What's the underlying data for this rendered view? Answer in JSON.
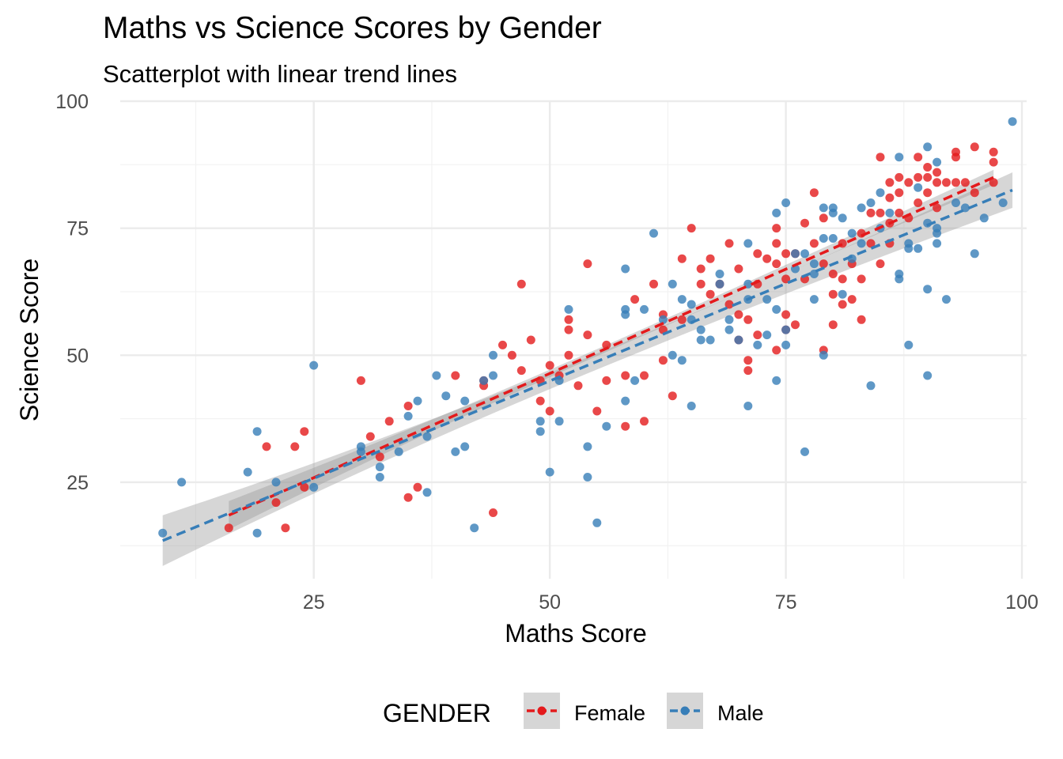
{
  "chart_data": {
    "type": "scatter",
    "title": "Maths vs Science Scores by Gender",
    "subtitle": "Scatterplot with linear trend lines",
    "xlabel": "Maths Score",
    "ylabel": "Science Score",
    "xlim": [
      4.5,
      100.5
    ],
    "ylim": [
      6,
      100
    ],
    "xticks": [
      25,
      50,
      75,
      100
    ],
    "yticks": [
      25,
      50,
      75,
      100
    ],
    "grid": true,
    "legend": {
      "title": "GENDER",
      "position": "bottom"
    },
    "series": [
      {
        "name": "Female",
        "color": "#E41A1C",
        "trend": {
          "x": [
            16,
            97
          ],
          "y": [
            18.5,
            85
          ],
          "ci_halfwidth": [
            2.8,
            1.5
          ]
        },
        "points": [
          [
            16,
            16
          ],
          [
            20,
            32
          ],
          [
            21,
            21
          ],
          [
            22,
            16
          ],
          [
            23,
            32
          ],
          [
            24,
            35
          ],
          [
            24,
            24
          ],
          [
            30,
            45
          ],
          [
            31,
            34
          ],
          [
            32,
            30
          ],
          [
            33,
            37
          ],
          [
            35,
            22
          ],
          [
            35,
            40
          ],
          [
            36,
            24
          ],
          [
            40,
            46
          ],
          [
            43,
            44
          ],
          [
            43,
            45
          ],
          [
            44,
            19
          ],
          [
            45,
            52
          ],
          [
            46,
            50
          ],
          [
            47,
            64
          ],
          [
            47,
            47
          ],
          [
            48,
            53
          ],
          [
            49,
            45
          ],
          [
            49,
            41
          ],
          [
            50,
            48
          ],
          [
            50,
            39
          ],
          [
            51,
            46
          ],
          [
            52,
            55
          ],
          [
            52,
            57
          ],
          [
            52,
            50
          ],
          [
            53,
            44
          ],
          [
            54,
            68
          ],
          [
            54,
            54
          ],
          [
            55,
            39
          ],
          [
            56,
            52
          ],
          [
            56,
            45
          ],
          [
            58,
            46
          ],
          [
            58,
            36
          ],
          [
            59,
            61
          ],
          [
            60,
            46
          ],
          [
            60,
            37
          ],
          [
            61,
            64
          ],
          [
            62,
            55
          ],
          [
            62,
            58
          ],
          [
            62,
            49
          ],
          [
            63,
            42
          ],
          [
            64,
            57
          ],
          [
            64,
            69
          ],
          [
            65,
            75
          ],
          [
            66,
            67
          ],
          [
            66,
            64
          ],
          [
            67,
            69
          ],
          [
            67,
            62
          ],
          [
            68,
            64
          ],
          [
            69,
            72
          ],
          [
            69,
            60
          ],
          [
            70,
            67
          ],
          [
            70,
            53
          ],
          [
            70,
            58
          ],
          [
            71,
            49
          ],
          [
            71,
            47
          ],
          [
            71,
            57
          ],
          [
            72,
            70
          ],
          [
            72,
            64
          ],
          [
            72,
            54
          ],
          [
            73,
            69
          ],
          [
            74,
            75
          ],
          [
            74,
            72
          ],
          [
            74,
            68
          ],
          [
            74,
            51
          ],
          [
            75,
            70
          ],
          [
            75,
            65
          ],
          [
            75,
            58
          ],
          [
            75,
            55
          ],
          [
            76,
            70
          ],
          [
            76,
            56
          ],
          [
            77,
            76
          ],
          [
            77,
            65
          ],
          [
            78,
            82
          ],
          [
            78,
            72
          ],
          [
            79,
            77
          ],
          [
            79,
            68
          ],
          [
            79,
            51
          ],
          [
            80,
            66
          ],
          [
            80,
            62
          ],
          [
            80,
            56
          ],
          [
            81,
            72
          ],
          [
            81,
            65
          ],
          [
            81,
            60
          ],
          [
            82,
            68
          ],
          [
            82,
            61
          ],
          [
            83,
            74
          ],
          [
            83,
            65
          ],
          [
            83,
            57
          ],
          [
            84,
            78
          ],
          [
            84,
            72
          ],
          [
            85,
            89
          ],
          [
            85,
            78
          ],
          [
            85,
            68
          ],
          [
            86,
            84
          ],
          [
            86,
            81
          ],
          [
            86,
            76
          ],
          [
            86,
            72
          ],
          [
            87,
            85
          ],
          [
            87,
            82
          ],
          [
            87,
            78
          ],
          [
            88,
            84
          ],
          [
            88,
            77
          ],
          [
            89,
            89
          ],
          [
            89,
            85
          ],
          [
            89,
            80
          ],
          [
            90,
            87
          ],
          [
            90,
            85
          ],
          [
            90,
            82
          ],
          [
            91,
            86
          ],
          [
            91,
            84
          ],
          [
            91,
            79
          ],
          [
            92,
            84
          ],
          [
            93,
            90
          ],
          [
            93,
            89
          ],
          [
            93,
            84
          ],
          [
            94,
            84
          ],
          [
            95,
            91
          ],
          [
            95,
            82
          ],
          [
            97,
            90
          ],
          [
            97,
            88
          ],
          [
            97,
            84
          ]
        ]
      },
      {
        "name": "Male",
        "color": "#377EB8",
        "trend": {
          "x": [
            9,
            99
          ],
          "y": [
            13.5,
            82.5
          ],
          "ci_halfwidth": [
            5,
            3.5
          ]
        },
        "points": [
          [
            9,
            15
          ],
          [
            11,
            25
          ],
          [
            18,
            27
          ],
          [
            19,
            15
          ],
          [
            19,
            35
          ],
          [
            21,
            25
          ],
          [
            25,
            48
          ],
          [
            25,
            24
          ],
          [
            30,
            32
          ],
          [
            30,
            31
          ],
          [
            32,
            28
          ],
          [
            32,
            26
          ],
          [
            34,
            31
          ],
          [
            35,
            38
          ],
          [
            36,
            41
          ],
          [
            37,
            23
          ],
          [
            37,
            34
          ],
          [
            38,
            46
          ],
          [
            39,
            42
          ],
          [
            40,
            31
          ],
          [
            41,
            41
          ],
          [
            41,
            32
          ],
          [
            42,
            16
          ],
          [
            43,
            45
          ],
          [
            44,
            50
          ],
          [
            44,
            46
          ],
          [
            49,
            35
          ],
          [
            49,
            37
          ],
          [
            50,
            27
          ],
          [
            51,
            45
          ],
          [
            51,
            37
          ],
          [
            52,
            59
          ],
          [
            54,
            32
          ],
          [
            54,
            26
          ],
          [
            55,
            17
          ],
          [
            56,
            36
          ],
          [
            58,
            59
          ],
          [
            58,
            58
          ],
          [
            58,
            67
          ],
          [
            58,
            41
          ],
          [
            59,
            45
          ],
          [
            60,
            59
          ],
          [
            61,
            74
          ],
          [
            62,
            57
          ],
          [
            63,
            64
          ],
          [
            63,
            50
          ],
          [
            64,
            61
          ],
          [
            64,
            49
          ],
          [
            65,
            60
          ],
          [
            65,
            57
          ],
          [
            65,
            40
          ],
          [
            66,
            55
          ],
          [
            66,
            53
          ],
          [
            67,
            53
          ],
          [
            68,
            64
          ],
          [
            68,
            66
          ],
          [
            69,
            55
          ],
          [
            69,
            57
          ],
          [
            70,
            53
          ],
          [
            71,
            72
          ],
          [
            71,
            64
          ],
          [
            71,
            61
          ],
          [
            71,
            40
          ],
          [
            72,
            52
          ],
          [
            73,
            61
          ],
          [
            73,
            54
          ],
          [
            74,
            78
          ],
          [
            74,
            59
          ],
          [
            74,
            45
          ],
          [
            75,
            80
          ],
          [
            75,
            55
          ],
          [
            75,
            52
          ],
          [
            76,
            70
          ],
          [
            76,
            67
          ],
          [
            77,
            70
          ],
          [
            77,
            31
          ],
          [
            78,
            68
          ],
          [
            78,
            66
          ],
          [
            78,
            61
          ],
          [
            79,
            79
          ],
          [
            79,
            73
          ],
          [
            79,
            50
          ],
          [
            80,
            79
          ],
          [
            80,
            73
          ],
          [
            80,
            78
          ],
          [
            81,
            77
          ],
          [
            81,
            62
          ],
          [
            82,
            69
          ],
          [
            82,
            74
          ],
          [
            83,
            79
          ],
          [
            83,
            72
          ],
          [
            84,
            80
          ],
          [
            84,
            44
          ],
          [
            85,
            82
          ],
          [
            85,
            75
          ],
          [
            86,
            78
          ],
          [
            87,
            89
          ],
          [
            87,
            65
          ],
          [
            87,
            66
          ],
          [
            88,
            72
          ],
          [
            88,
            71
          ],
          [
            88,
            52
          ],
          [
            89,
            83
          ],
          [
            89,
            71
          ],
          [
            90,
            91
          ],
          [
            90,
            63
          ],
          [
            90,
            46
          ],
          [
            90,
            76
          ],
          [
            91,
            88
          ],
          [
            91,
            74
          ],
          [
            91,
            72
          ],
          [
            91,
            75
          ],
          [
            92,
            61
          ],
          [
            93,
            80
          ],
          [
            94,
            79
          ],
          [
            95,
            70
          ],
          [
            96,
            77
          ],
          [
            98,
            80
          ],
          [
            99,
            96
          ]
        ]
      }
    ]
  }
}
